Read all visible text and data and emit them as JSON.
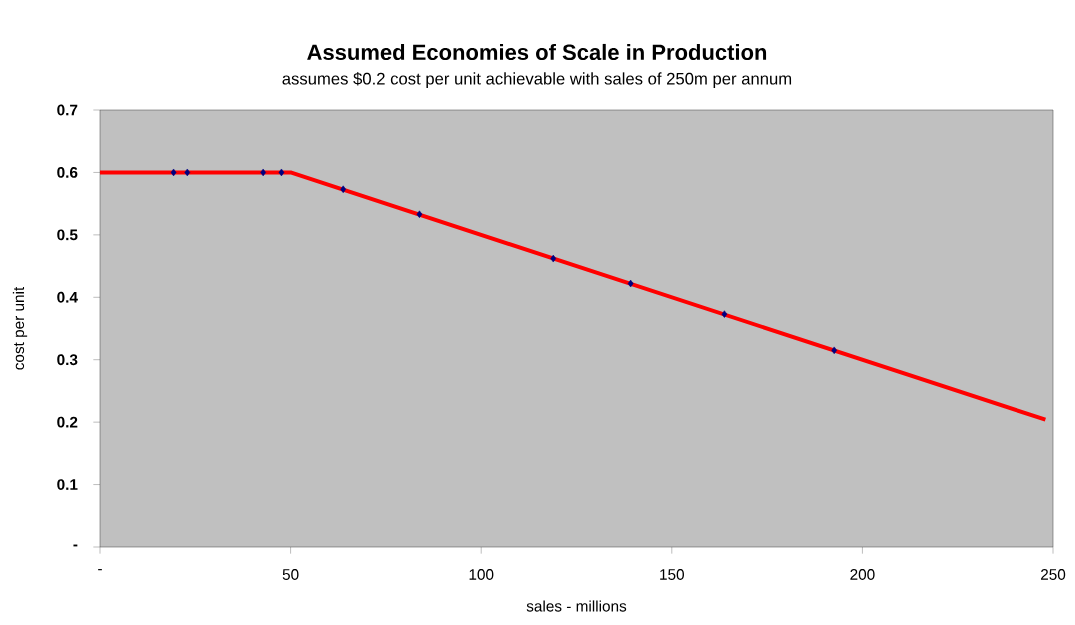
{
  "chart_data": {
    "type": "scatter",
    "title": "Assumed Economies of Scale in Production",
    "subtitle": "assumes $0.2 cost per unit achievable with sales of 250m per annum",
    "xlabel": "sales - millions",
    "ylabel": "cost per unit",
    "xlim": [
      0,
      250
    ],
    "ylim": [
      0,
      0.7
    ],
    "xticks": [
      {
        "value": 0,
        "label": "-"
      },
      50,
      100,
      150,
      200,
      250
    ],
    "yticks": [
      {
        "value": 0,
        "label": "-"
      },
      0.1,
      0.2,
      0.3,
      0.4,
      0.5,
      0.6,
      0.7
    ],
    "series": [
      {
        "marker": "diamond",
        "color": "#000080",
        "x": [
          19.3,
          22.9,
          42.8,
          47.6,
          63.8,
          83.8,
          118.9,
          139.2,
          163.8,
          192.6
        ],
        "values": [
          0.6,
          0.6,
          0.6,
          0.6,
          0.573,
          0.533,
          0.462,
          0.422,
          0.373,
          0.315
        ]
      },
      {
        "type": "line",
        "marker": "none",
        "color": "#ff0000",
        "x": [
          0,
          50,
          248
        ],
        "values": [
          0.6,
          0.6,
          0.204
        ]
      }
    ]
  }
}
